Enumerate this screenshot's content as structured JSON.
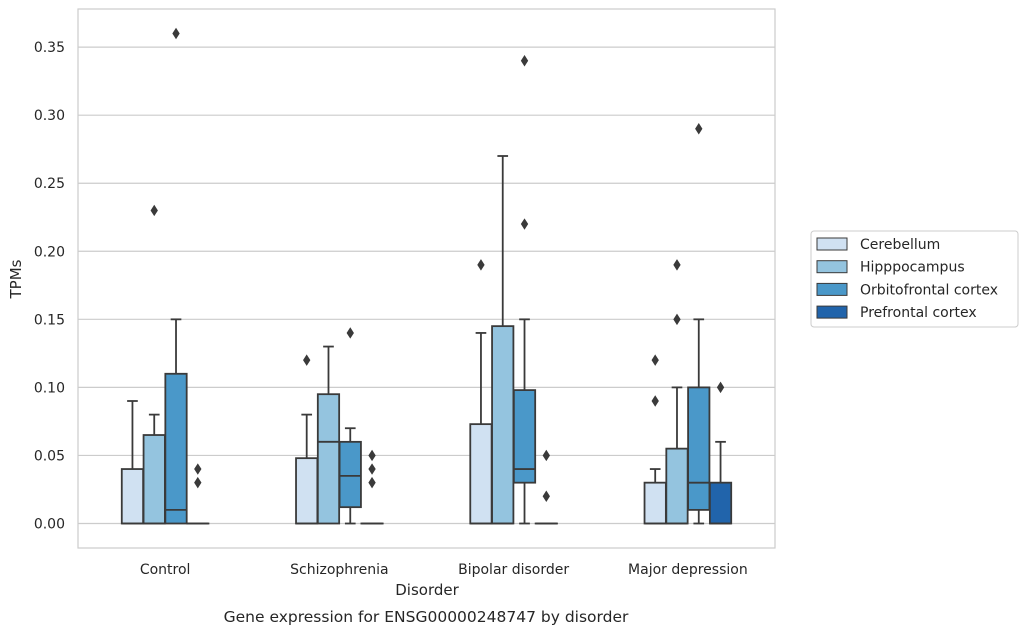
{
  "caption": "Gene expression for ENSG00000248747 by disorder",
  "chart_data": {
    "type": "box",
    "xlabel": "Disorder",
    "ylabel": "TPMs",
    "ylim": [
      -0.018,
      0.378
    ],
    "yticks": [
      0.0,
      0.05,
      0.1,
      0.15,
      0.2,
      0.25,
      0.3,
      0.35
    ],
    "ytick_labels": [
      "0.00",
      "0.05",
      "0.10",
      "0.15",
      "0.20",
      "0.25",
      "0.30",
      "0.35"
    ],
    "grid": "horizontal",
    "legend_position": "right-center",
    "categories": [
      "Control",
      "Schizophrenia",
      "Bipolar disorder",
      "Major depression"
    ],
    "series": [
      {
        "name": "Cerebellum",
        "color": "#d0e1f2",
        "boxes": [
          {
            "category": "Control",
            "whisker_low": 0.0,
            "q1": 0.0,
            "median": 0.0,
            "q3": 0.04,
            "whisker_high": 0.09,
            "outliers": []
          },
          {
            "category": "Schizophrenia",
            "whisker_low": 0.0,
            "q1": 0.0,
            "median": 0.0,
            "q3": 0.048,
            "whisker_high": 0.08,
            "outliers": [
              0.12
            ]
          },
          {
            "category": "Bipolar disorder",
            "whisker_low": 0.0,
            "q1": 0.0,
            "median": 0.0,
            "q3": 0.073,
            "whisker_high": 0.14,
            "outliers": [
              0.19
            ]
          },
          {
            "category": "Major depression",
            "whisker_low": 0.0,
            "q1": 0.0,
            "median": 0.0,
            "q3": 0.03,
            "whisker_high": 0.04,
            "outliers": [
              0.09,
              0.12
            ]
          }
        ]
      },
      {
        "name": "Hipppocampus",
        "color": "#94c4df",
        "boxes": [
          {
            "category": "Control",
            "whisker_low": 0.0,
            "q1": 0.0,
            "median": 0.0,
            "q3": 0.065,
            "whisker_high": 0.08,
            "outliers": [
              0.23
            ]
          },
          {
            "category": "Schizophrenia",
            "whisker_low": 0.0,
            "q1": 0.0,
            "median": 0.06,
            "q3": 0.095,
            "whisker_high": 0.13,
            "outliers": []
          },
          {
            "category": "Bipolar disorder",
            "whisker_low": 0.0,
            "q1": 0.0,
            "median": 0.0,
            "q3": 0.145,
            "whisker_high": 0.27,
            "outliers": []
          },
          {
            "category": "Major depression",
            "whisker_low": 0.0,
            "q1": 0.0,
            "median": 0.0,
            "q3": 0.055,
            "whisker_high": 0.1,
            "outliers": [
              0.15,
              0.19
            ]
          }
        ]
      },
      {
        "name": "Orbitofrontal cortex",
        "color": "#4a98c9",
        "boxes": [
          {
            "category": "Control",
            "whisker_low": 0.0,
            "q1": 0.0,
            "median": 0.01,
            "q3": 0.11,
            "whisker_high": 0.15,
            "outliers": [
              0.36
            ]
          },
          {
            "category": "Schizophrenia",
            "whisker_low": 0.0,
            "q1": 0.012,
            "median": 0.035,
            "q3": 0.06,
            "whisker_high": 0.07,
            "outliers": [
              0.14
            ]
          },
          {
            "category": "Bipolar disorder",
            "whisker_low": 0.0,
            "q1": 0.03,
            "median": 0.04,
            "q3": 0.098,
            "whisker_high": 0.15,
            "outliers": [
              0.22,
              0.34
            ]
          },
          {
            "category": "Major depression",
            "whisker_low": 0.0,
            "q1": 0.01,
            "median": 0.03,
            "q3": 0.1,
            "whisker_high": 0.15,
            "outliers": [
              0.29
            ]
          }
        ]
      },
      {
        "name": "Prefrontal cortex",
        "color": "#2164ab",
        "boxes": [
          {
            "category": "Control",
            "whisker_low": 0.0,
            "q1": 0.0,
            "median": 0.0,
            "q3": 0.0,
            "whisker_high": 0.0,
            "outliers": [
              0.03,
              0.04
            ]
          },
          {
            "category": "Schizophrenia",
            "whisker_low": 0.0,
            "q1": 0.0,
            "median": 0.0,
            "q3": 0.0,
            "whisker_high": 0.0,
            "outliers": [
              0.03,
              0.04,
              0.05
            ]
          },
          {
            "category": "Bipolar disorder",
            "whisker_low": 0.0,
            "q1": 0.0,
            "median": 0.0,
            "q3": 0.0,
            "whisker_high": 0.0,
            "outliers": [
              0.02,
              0.05
            ]
          },
          {
            "category": "Major depression",
            "whisker_low": 0.0,
            "q1": 0.0,
            "median": 0.0,
            "q3": 0.03,
            "whisker_high": 0.06,
            "outliers": [
              0.1
            ]
          }
        ]
      }
    ]
  }
}
